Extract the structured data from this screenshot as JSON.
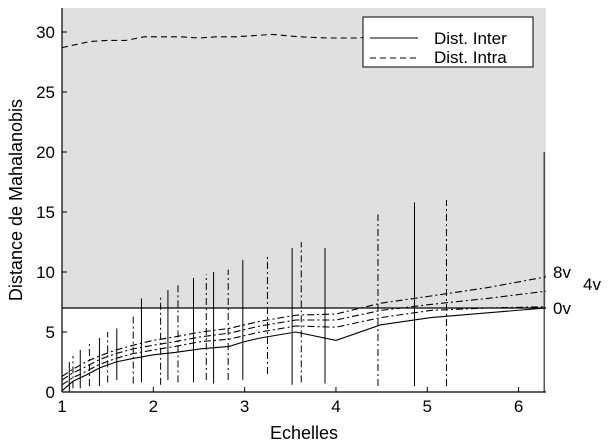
{
  "chart_data": {
    "type": "line",
    "xlabel": "Echelles",
    "ylabel": "Distance de Mahalanobis",
    "xlim": [
      1,
      6.3
    ],
    "ylim": [
      0,
      32
    ],
    "xticks": [
      1,
      2,
      3,
      4,
      5,
      6
    ],
    "yticks": [
      0,
      5,
      10,
      15,
      20,
      25,
      30
    ],
    "grid": false,
    "legend_position": "top-right",
    "shaded_region": {
      "y_from": 7,
      "y_to": 32,
      "color": "#e0e0e0"
    },
    "threshold_line": {
      "y": 7
    },
    "legend": [
      {
        "label": "Dist. Inter",
        "style": "solid"
      },
      {
        "label": "Dist. Intra",
        "style": "dashed"
      }
    ],
    "series": [
      {
        "name": "Dist. Inter",
        "style": "solid",
        "x": [
          1.0,
          1.12,
          1.26,
          1.41,
          1.59,
          1.78,
          2.0,
          2.24,
          2.52,
          2.83,
          3.0,
          3.17,
          3.56,
          4.0,
          4.49,
          5.04,
          5.66,
          6.3
        ],
        "y": [
          0.1,
          0.9,
          1.4,
          2.0,
          2.5,
          2.8,
          3.1,
          3.3,
          3.6,
          3.8,
          4.2,
          4.5,
          5.0,
          4.3,
          5.6,
          6.2,
          6.6,
          7.0
        ]
      },
      {
        "name": "Dist. Intra",
        "style": "dashed",
        "x": [
          1.0,
          1.3,
          1.5,
          1.7,
          1.9,
          2.1,
          2.3,
          2.5,
          2.7,
          2.9,
          3.1,
          3.3,
          3.6,
          3.9,
          4.2,
          4.5,
          4.8,
          5.1,
          5.4
        ],
        "y": [
          28.7,
          29.2,
          29.3,
          29.3,
          29.6,
          29.6,
          29.6,
          29.5,
          29.6,
          29.6,
          29.7,
          29.8,
          29.6,
          29.5,
          29.5,
          29.6,
          29.6,
          29.6,
          29.6
        ]
      },
      {
        "name": "0v",
        "style": "dash-dot",
        "x": [
          1.0,
          1.12,
          1.26,
          1.41,
          1.59,
          1.78,
          2.0,
          2.24,
          2.52,
          2.83,
          3.17,
          3.56,
          4.0,
          4.49,
          5.04,
          5.66,
          6.3
        ],
        "y": [
          0.6,
          1.2,
          1.7,
          2.3,
          2.8,
          3.2,
          3.5,
          3.8,
          4.2,
          4.4,
          5.0,
          5.5,
          5.4,
          6.2,
          6.8,
          7.0,
          7.1
        ]
      },
      {
        "name": "4v",
        "style": "dash-dot",
        "x": [
          1.0,
          1.12,
          1.26,
          1.41,
          1.59,
          1.78,
          2.0,
          2.24,
          2.52,
          2.83,
          3.17,
          3.56,
          4.0,
          4.49,
          5.04,
          5.66,
          6.3
        ],
        "y": [
          1.0,
          1.6,
          2.1,
          2.7,
          3.2,
          3.6,
          3.9,
          4.2,
          4.6,
          4.9,
          5.5,
          6.0,
          6.0,
          6.8,
          7.3,
          7.8,
          8.4
        ]
      },
      {
        "name": "8v",
        "style": "dash-dot",
        "x": [
          1.0,
          1.12,
          1.26,
          1.41,
          1.59,
          1.78,
          2.0,
          2.24,
          2.52,
          2.83,
          3.17,
          3.56,
          4.0,
          4.49,
          5.04,
          5.66,
          6.3
        ],
        "y": [
          1.3,
          1.9,
          2.5,
          3.0,
          3.5,
          3.9,
          4.3,
          4.6,
          5.0,
          5.3,
          5.9,
          6.4,
          6.5,
          7.4,
          8.0,
          8.7,
          9.6
        ]
      }
    ],
    "error_bars": [
      {
        "x": 1.08,
        "low": 0.0,
        "high": 2.5
      },
      {
        "x": 1.12,
        "low": 0.3,
        "high": 3.0
      },
      {
        "x": 1.2,
        "low": 0.3,
        "high": 3.5
      },
      {
        "x": 1.3,
        "low": 0.5,
        "high": 4.2
      },
      {
        "x": 1.41,
        "low": 0.5,
        "high": 4.5
      },
      {
        "x": 1.5,
        "low": 0.8,
        "high": 5.0
      },
      {
        "x": 1.6,
        "low": 1.0,
        "high": 5.3
      },
      {
        "x": 1.78,
        "low": 0.7,
        "high": 6.5
      },
      {
        "x": 1.87,
        "low": 0.8,
        "high": 7.8
      },
      {
        "x": 2.08,
        "low": 0.6,
        "high": 8.0
      },
      {
        "x": 2.16,
        "low": 1.0,
        "high": 8.5
      },
      {
        "x": 2.27,
        "low": 0.8,
        "high": 9.0
      },
      {
        "x": 2.44,
        "low": 0.8,
        "high": 9.5
      },
      {
        "x": 2.58,
        "low": 1.0,
        "high": 9.8
      },
      {
        "x": 2.66,
        "low": 0.7,
        "high": 10.0
      },
      {
        "x": 2.82,
        "low": 1.0,
        "high": 10.2
      },
      {
        "x": 2.98,
        "low": 1.0,
        "high": 11.0
      },
      {
        "x": 3.25,
        "low": 1.5,
        "high": 11.5
      },
      {
        "x": 3.52,
        "low": 0.6,
        "high": 12.0
      },
      {
        "x": 3.62,
        "low": 0.8,
        "high": 12.5
      },
      {
        "x": 3.88,
        "low": 0.7,
        "high": 12.0
      },
      {
        "x": 4.46,
        "low": 0.5,
        "high": 14.8
      },
      {
        "x": 4.86,
        "low": 0.5,
        "high": 15.8
      },
      {
        "x": 5.21,
        "low": 0.5,
        "high": 16.0
      },
      {
        "x": 6.28,
        "low": 0.0,
        "high": 20.0
      }
    ],
    "annotations": [
      {
        "text": "8v",
        "x_side": "right",
        "y": 10.0
      },
      {
        "text": "4v",
        "x_side": "right",
        "y": 9.0
      },
      {
        "text": "0v",
        "x_side": "right",
        "y": 7.0
      }
    ]
  },
  "colors": {
    "line": "#000000",
    "shade": "#e0e0e0",
    "background": "#ffffff"
  }
}
